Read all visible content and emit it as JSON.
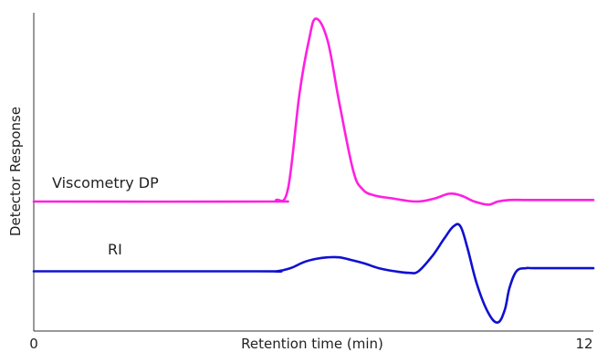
{
  "chart_data": {
    "type": "line",
    "title": "",
    "xlabel": "Retention time (min)",
    "ylabel": "Detector Response",
    "x_ticks": [
      "0",
      "12"
    ],
    "xlim": [
      0,
      12
    ],
    "ylim": [
      0,
      100
    ],
    "grid": false,
    "legend": "none",
    "series": [
      {
        "name": "Viscometry DP",
        "color": "#ff1fe0",
        "x": [
          0,
          5.0,
          5.2,
          5.45,
          5.7,
          5.9,
          6.05,
          6.3,
          6.55,
          6.85,
          7.05,
          7.3,
          7.7,
          8.2,
          8.6,
          8.9,
          9.15,
          9.45,
          9.75,
          9.95,
          10.2,
          10.5,
          10.8,
          12
        ],
        "y": [
          40,
          40,
          40.5,
          44,
          75,
          92,
          99,
          92,
          72,
          50,
          44,
          42,
          41,
          40,
          41,
          42.5,
          42,
          40,
          39,
          40,
          40.5,
          40.5,
          40.5,
          40.5
        ]
      },
      {
        "name": "RI",
        "color": "#1010d0",
        "x": [
          0,
          4.8,
          5.2,
          5.5,
          5.8,
          6.05,
          6.3,
          6.55,
          6.85,
          7.1,
          7.4,
          7.75,
          8.05,
          8.25,
          8.55,
          8.8,
          9.0,
          9.15,
          9.3,
          9.5,
          9.75,
          9.95,
          10.1,
          10.2,
          10.35,
          10.55,
          10.8,
          12
        ],
        "y": [
          17.5,
          17.5,
          17.5,
          18.5,
          20.5,
          21.5,
          22,
          22,
          21,
          20,
          18.5,
          17.5,
          17,
          17.5,
          22.5,
          28,
          32,
          32,
          25,
          13.5,
          4,
          1,
          5,
          12,
          17.5,
          18.5,
          18.5,
          18.5
        ]
      }
    ],
    "annotations": [
      {
        "text": "Viscometry DP",
        "series": "Viscometry DP"
      },
      {
        "text": "RI",
        "series": "RI"
      }
    ]
  }
}
